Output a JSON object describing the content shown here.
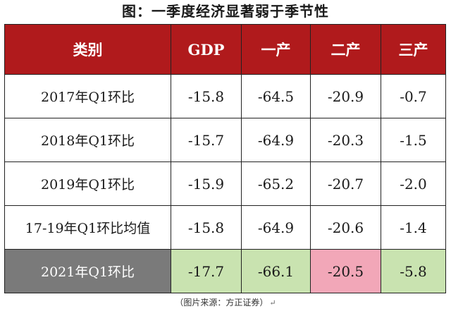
{
  "title": "图：一季度经济显著弱于季节性",
  "source": "（图片来源：方正证券）",
  "return_mark": "↵",
  "colors": {
    "header_bg": "#b01a1c",
    "highlight_label_bg": "#7a7a7a",
    "green": "#c9e3b0",
    "pink": "#f2a7b8"
  },
  "chart_data": {
    "type": "table",
    "columns": [
      "类别",
      "GDP",
      "一产",
      "二产",
      "三产"
    ],
    "rows": [
      {
        "label": "2017年Q1环比",
        "values": [
          "-15.8",
          "-64.5",
          "-20.9",
          "-0.7"
        ],
        "highlight": false
      },
      {
        "label": "2018年Q1环比",
        "values": [
          "-15.7",
          "-64.9",
          "-20.3",
          "-1.5"
        ],
        "highlight": false
      },
      {
        "label": "2019年Q1环比",
        "values": [
          "-15.9",
          "-65.2",
          "-20.7",
          "-2.0"
        ],
        "highlight": false
      },
      {
        "label": "17-19年Q1环比均值",
        "values": [
          "-15.8",
          "-64.9",
          "-20.6",
          "-1.4"
        ],
        "highlight": false
      },
      {
        "label": "2021年Q1环比",
        "values": [
          "-17.7",
          "-66.1",
          "-20.5",
          "-5.8"
        ],
        "highlight": true,
        "cell_colors": [
          "green",
          "green",
          "pink",
          "green"
        ]
      }
    ]
  }
}
